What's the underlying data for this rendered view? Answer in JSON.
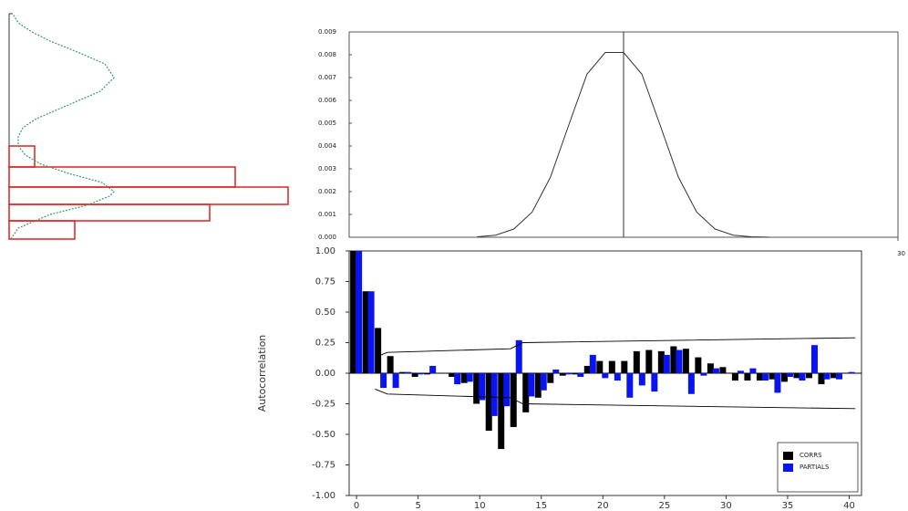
{
  "chart_data": [
    {
      "type": "histogram",
      "orientation": "horizontal",
      "color": "#e02020",
      "bins": [
        0,
        20,
        38,
        57,
        79,
        102
      ],
      "values": [
        72,
        220,
        306,
        248,
        28
      ],
      "ylim": [
        0,
        247
      ],
      "xlim": [
        0,
        306
      ],
      "curve": {
        "color": "#3a9a6a",
        "x": [
          0,
          12,
          27,
          37,
          47,
          52,
          62,
          72,
          82,
          92,
          102,
          112,
          122,
          132,
          147,
          162,
          177,
          192,
          207,
          217,
          227,
          237,
          247
        ],
        "values": [
          2,
          10,
          45,
          85,
          110,
          115,
          102,
          65,
          35,
          18,
          10,
          10,
          15,
          30,
          65,
          100,
          115,
          105,
          70,
          45,
          25,
          10,
          4
        ]
      }
    },
    {
      "type": "line",
      "color": "#333333",
      "x": [
        7,
        8,
        9,
        10,
        11,
        12,
        13,
        14,
        15,
        16,
        17,
        18,
        19,
        20,
        21,
        22,
        23
      ],
      "values": [
        2e-05,
        9e-05,
        0.00036,
        0.0011,
        0.00263,
        0.00491,
        0.00715,
        0.0081,
        0.0081,
        0.00715,
        0.00491,
        0.00263,
        0.0011,
        0.00036,
        9e-05,
        2e-05,
        0
      ],
      "xlim": [
        0,
        30
      ],
      "xticks": [
        30
      ],
      "vline": 15,
      "ylim": [
        0,
        0.009
      ],
      "yticks": [
        {
          "value": 0,
          "label": "0.000"
        },
        0.001,
        0.002,
        0.003,
        0.004,
        0.005,
        0.006,
        0.007,
        0.008,
        0.009
      ]
    },
    {
      "type": "bar",
      "y_label": "Autocorrelation",
      "legend": "lower right",
      "x": [
        0,
        1,
        2,
        3,
        4,
        5,
        6,
        7,
        8,
        9,
        10,
        11,
        12,
        13,
        14,
        15,
        16,
        17,
        18,
        19,
        20,
        21,
        22,
        23,
        24,
        25,
        26,
        27,
        28,
        29,
        30,
        31,
        32,
        33,
        34,
        35,
        36,
        37,
        38,
        39,
        40
      ],
      "xlim": [
        -0.6,
        41
      ],
      "xticks": [
        0,
        5,
        10,
        15,
        20,
        25,
        30,
        35,
        40
      ],
      "ylim": [
        -1,
        1
      ],
      "yticks": [
        {
          "value": -1,
          "label": "-1.00"
        },
        {
          "value": -0.75,
          "label": "-0.75"
        },
        {
          "value": -0.5,
          "label": "-0.50"
        },
        {
          "value": -0.25,
          "label": "-0.25"
        },
        {
          "value": 0,
          "label": "0.00"
        },
        {
          "value": 0.25,
          "label": "0.25"
        },
        {
          "value": 0.5,
          "label": "0.50"
        },
        {
          "value": 0.75,
          "label": "0.75"
        },
        {
          "value": 1,
          "label": "1.00"
        }
      ],
      "series": [
        {
          "name": "CORRS",
          "color": "#000000",
          "values": [
            1.0,
            0.67,
            0.37,
            0.14,
            0.01,
            -0.03,
            -0.01,
            0.0,
            -0.03,
            -0.08,
            -0.25,
            -0.47,
            -0.62,
            -0.44,
            -0.32,
            -0.2,
            -0.08,
            -0.02,
            -0.01,
            0.06,
            0.1,
            0.1,
            0.1,
            0.18,
            0.19,
            0.18,
            0.22,
            0.2,
            0.13,
            0.08,
            0.05,
            -0.06,
            -0.06,
            -0.06,
            -0.05,
            -0.07,
            -0.04,
            -0.04,
            -0.09,
            -0.04,
            0.0
          ]
        },
        {
          "name": "PARTIALS",
          "color": "#0a14f0",
          "values": [
            1.0,
            0.67,
            -0.12,
            -0.12,
            0.01,
            -0.01,
            0.06,
            0.0,
            -0.09,
            -0.07,
            -0.22,
            -0.35,
            -0.27,
            0.27,
            -0.19,
            -0.14,
            0.03,
            -0.01,
            -0.03,
            0.15,
            -0.04,
            -0.06,
            -0.2,
            -0.1,
            -0.15,
            0.15,
            0.19,
            -0.17,
            -0.02,
            0.04,
            0.0,
            0.02,
            0.04,
            -0.06,
            -0.16,
            -0.03,
            -0.06,
            0.23,
            -0.05,
            -0.05,
            0.01
          ]
        }
      ],
      "confidence": {
        "x": [
          1.5,
          2.5,
          12.5,
          13.5,
          40.5
        ],
        "upper": [
          0.13,
          0.17,
          0.2,
          0.25,
          0.29
        ],
        "lower": [
          -0.13,
          -0.17,
          -0.2,
          -0.25,
          -0.29
        ]
      }
    }
  ]
}
